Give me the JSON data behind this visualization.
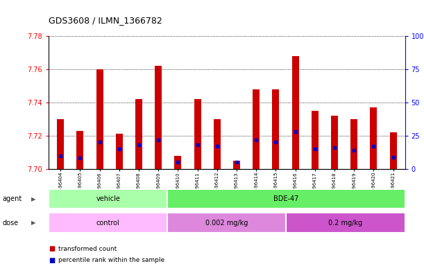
{
  "title": "GDS3608 / ILMN_1366782",
  "samples": [
    "GSM496404",
    "GSM496405",
    "GSM496406",
    "GSM496407",
    "GSM496408",
    "GSM496409",
    "GSM496410",
    "GSM496411",
    "GSM496412",
    "GSM496413",
    "GSM496414",
    "GSM496415",
    "GSM496416",
    "GSM496417",
    "GSM496418",
    "GSM496419",
    "GSM496420",
    "GSM496421"
  ],
  "transformed_count": [
    7.73,
    7.723,
    7.76,
    7.721,
    7.742,
    7.762,
    7.708,
    7.742,
    7.73,
    7.705,
    7.748,
    7.748,
    7.768,
    7.735,
    7.732,
    7.73,
    7.737,
    7.722
  ],
  "percentile_rank": [
    10,
    8,
    20,
    15,
    18,
    22,
    5,
    18,
    17,
    5,
    22,
    20,
    28,
    15,
    16,
    14,
    17,
    9
  ],
  "ymin": 7.7,
  "ymax": 7.78,
  "yticks": [
    7.7,
    7.72,
    7.74,
    7.76,
    7.78
  ],
  "right_yticks": [
    0,
    25,
    50,
    75,
    100
  ],
  "bar_color": "#cc0000",
  "percentile_color": "#0000cc",
  "agent_groups": [
    {
      "label": "vehicle",
      "start": 0,
      "end": 6,
      "color": "#aaffaa"
    },
    {
      "label": "BDE-47",
      "start": 6,
      "end": 18,
      "color": "#66ee66"
    }
  ],
  "dose_groups": [
    {
      "label": "control",
      "start": 0,
      "end": 6,
      "color": "#ffbbff"
    },
    {
      "label": "0.002 mg/kg",
      "start": 6,
      "end": 12,
      "color": "#dd88dd"
    },
    {
      "label": "0.2 mg/kg",
      "start": 12,
      "end": 18,
      "color": "#cc55cc"
    }
  ],
  "legend_items": [
    {
      "label": "transformed count",
      "color": "#cc0000"
    },
    {
      "label": "percentile rank within the sample",
      "color": "#0000cc"
    }
  ]
}
